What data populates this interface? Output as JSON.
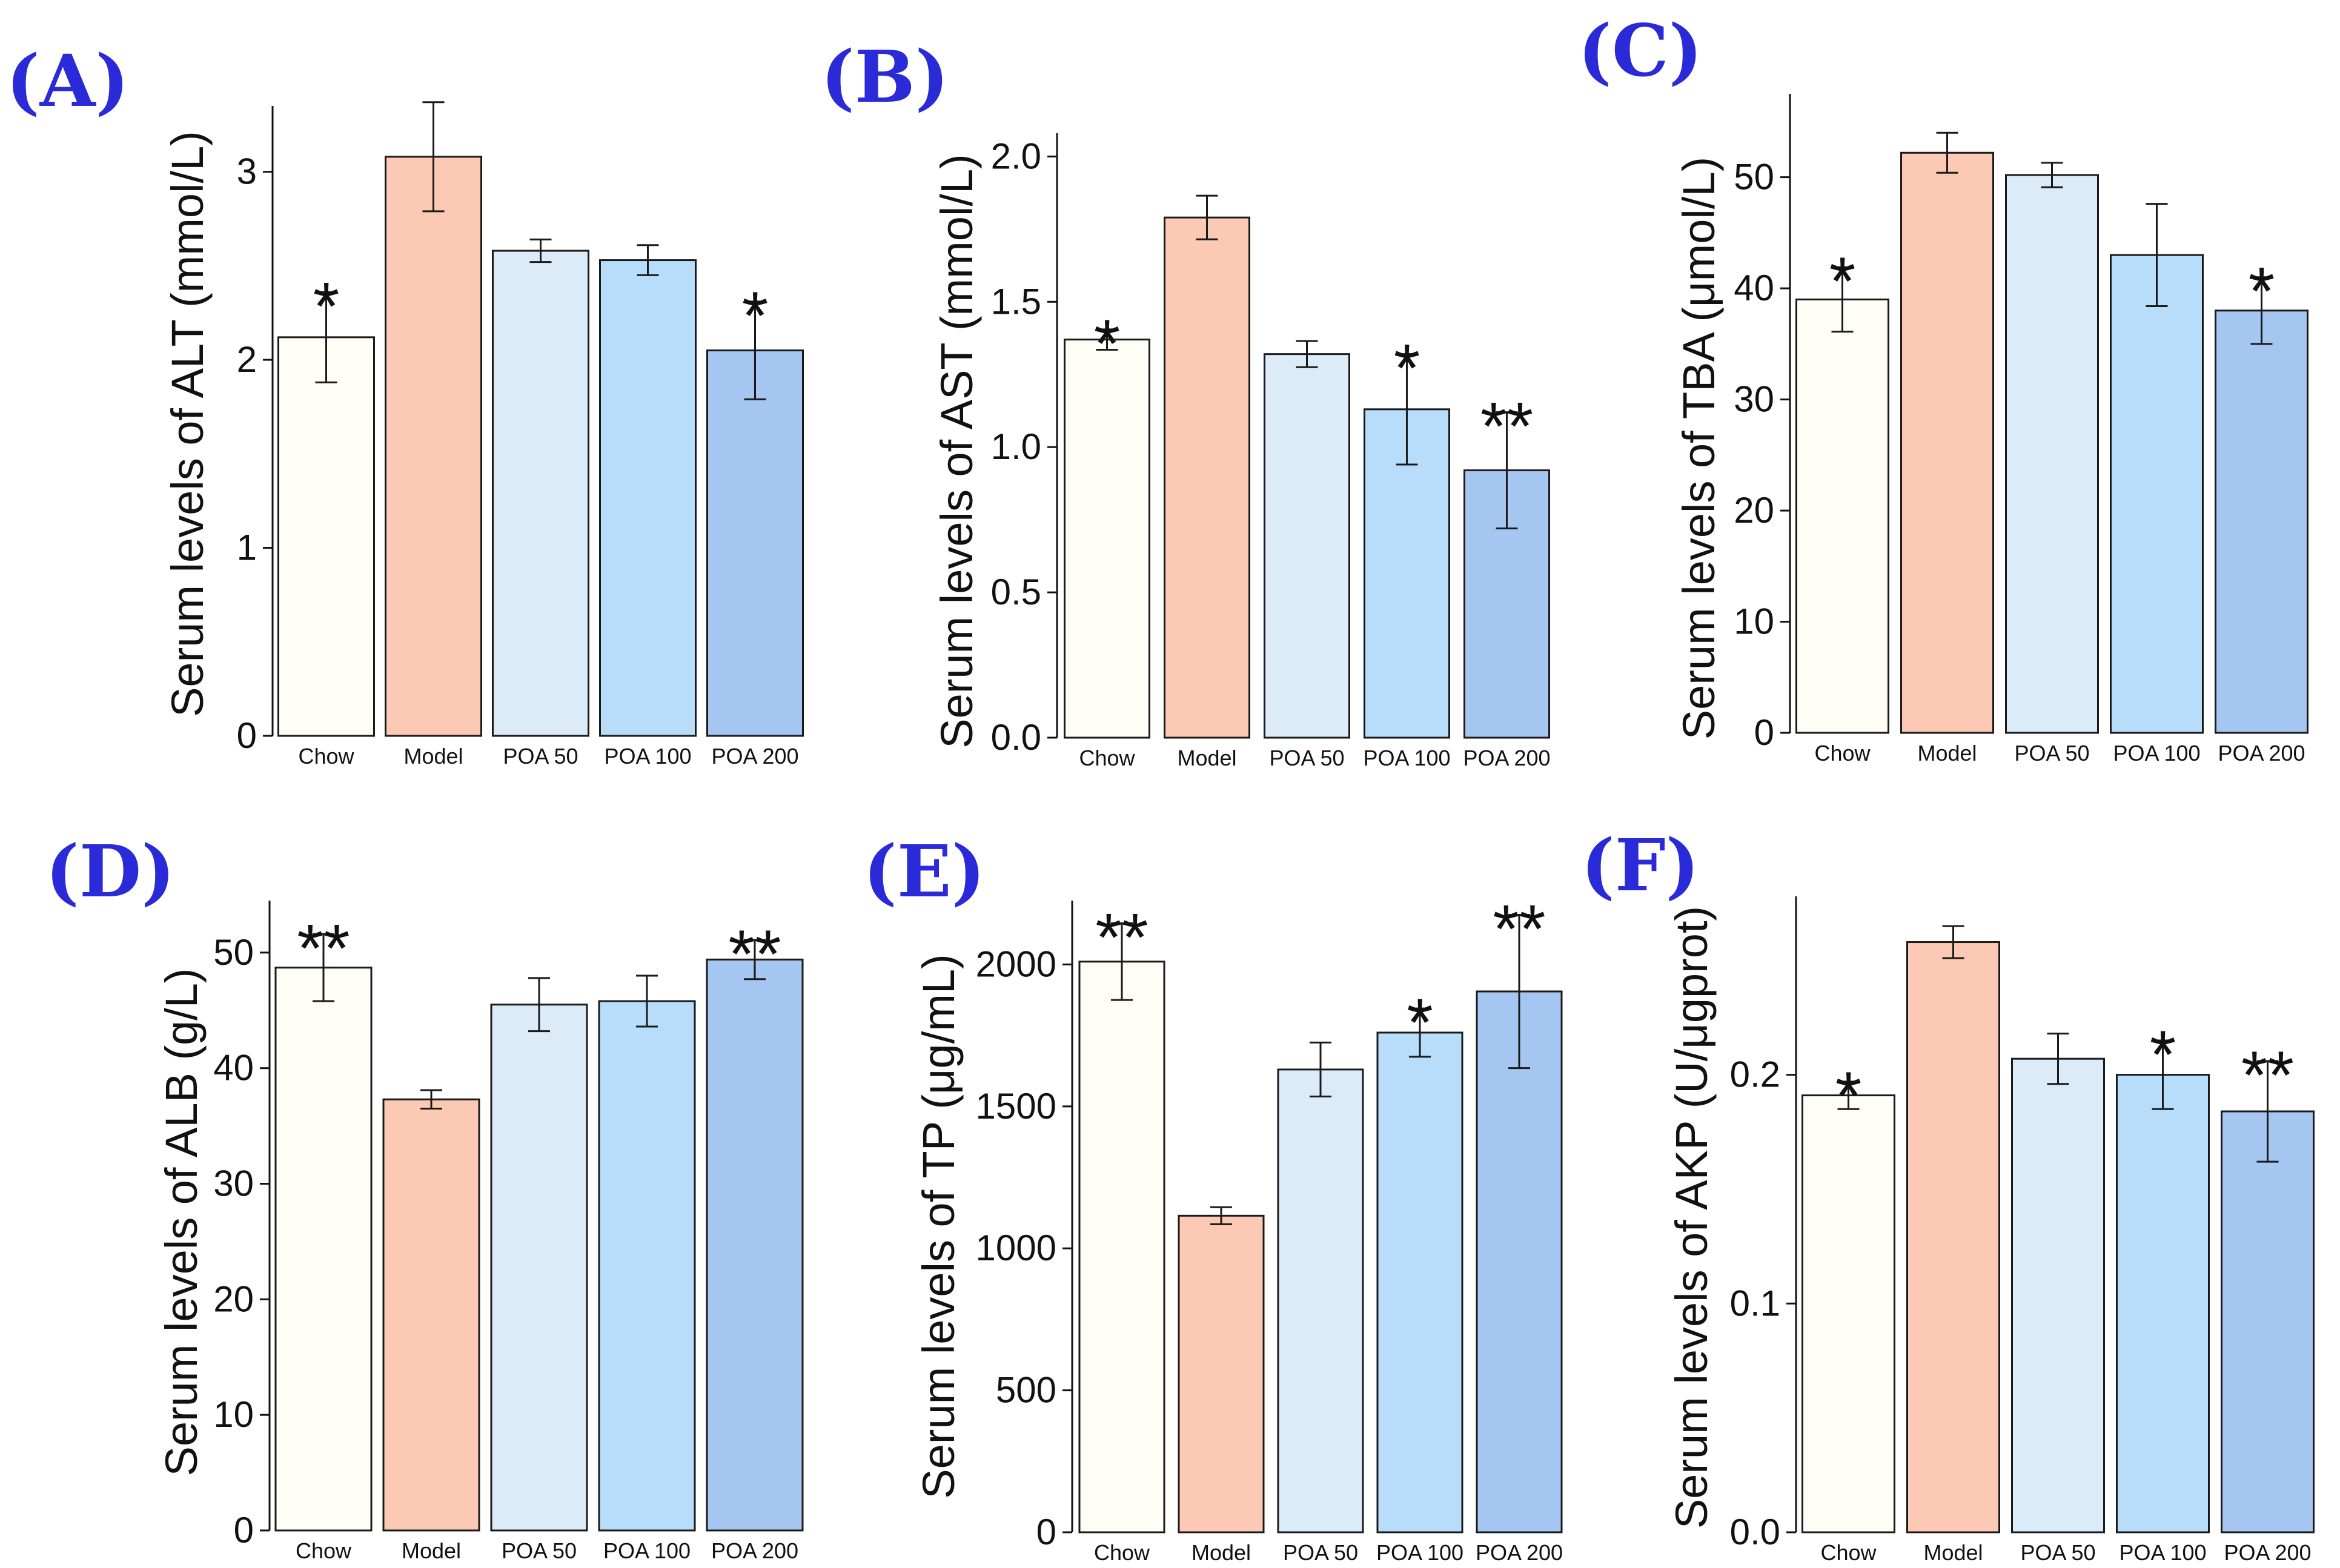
{
  "chart_data": [
    {
      "type": "bar",
      "panel": "(A)",
      "ylabel": "Serum levels of ALT (mmol/L)",
      "categories": [
        "Chow",
        "Model",
        "POA 50",
        "POA 100",
        "POA 200"
      ],
      "values": [
        2.12,
        3.08,
        2.58,
        2.53,
        2.05
      ],
      "errors": [
        0.24,
        0.29,
        0.06,
        0.08,
        0.26
      ],
      "significance": [
        "*",
        "",
        "",
        "",
        "*"
      ],
      "ylim": [
        0,
        3.35
      ],
      "yticks": [
        0,
        1,
        2,
        3
      ]
    },
    {
      "type": "bar",
      "panel": "(B)",
      "ylabel": "Serum levels of AST (mmol/L)",
      "categories": [
        "Chow",
        "Model",
        "POA 50",
        "POA 100",
        "POA 200"
      ],
      "values": [
        1.37,
        1.79,
        1.32,
        1.13,
        0.92
      ],
      "errors": [
        0.035,
        0.075,
        0.045,
        0.19,
        0.2
      ],
      "significance": [
        "*",
        "",
        "",
        "*",
        "**"
      ],
      "ylim": [
        0,
        2.08
      ],
      "yticks": [
        0.0,
        0.5,
        1.0,
        1.5,
        2.0
      ],
      "tick_decimals": 1
    },
    {
      "type": "bar",
      "panel": "(C)",
      "ylabel": "Serum levels of TBA (μmol/L)",
      "categories": [
        "Chow",
        "Model",
        "POA 50",
        "POA 100",
        "POA 200"
      ],
      "values": [
        39,
        52.2,
        50.2,
        43,
        38
      ],
      "errors": [
        2.9,
        1.8,
        1.1,
        4.6,
        3
      ],
      "significance": [
        "*",
        "",
        "",
        "",
        "*"
      ],
      "ylim": [
        0,
        57.5
      ],
      "yticks": [
        0,
        10,
        20,
        30,
        40,
        50
      ]
    },
    {
      "type": "bar",
      "panel": "(D)",
      "ylabel": "Serum levels of ALB (g/L)",
      "categories": [
        "Chow",
        "Model",
        "POA 50",
        "POA 100",
        "POA 200"
      ],
      "values": [
        48.7,
        37.3,
        45.5,
        45.8,
        49.4
      ],
      "errors": [
        2.9,
        0.8,
        2.3,
        2.2,
        1.7
      ],
      "significance": [
        "**",
        "",
        "",
        "",
        "**"
      ],
      "ylim": [
        0,
        54.5
      ],
      "yticks": [
        0,
        10,
        20,
        30,
        40,
        50
      ]
    },
    {
      "type": "bar",
      "panel": "(E)",
      "ylabel": "Serum levels of TP (μg/mL)",
      "categories": [
        "Chow",
        "Model",
        "POA 50",
        "POA 100",
        "POA 200"
      ],
      "values": [
        2010,
        1115,
        1630,
        1760,
        1905
      ],
      "errors": [
        135,
        30,
        95,
        85,
        270
      ],
      "significance": [
        "**",
        "",
        "",
        "*",
        "**"
      ],
      "ylim": [
        0,
        2225
      ],
      "yticks": [
        0,
        500,
        1000,
        1500,
        2000
      ]
    },
    {
      "type": "bar",
      "panel": "(F)",
      "ylabel": "Serum levels of AKP (U/μgprot)",
      "categories": [
        "Chow",
        "Model",
        "POA 50",
        "POA 100",
        "POA 200"
      ],
      "values": [
        0.191,
        0.258,
        0.207,
        0.2,
        0.184
      ],
      "errors": [
        0.006,
        0.007,
        0.011,
        0.015,
        0.022
      ],
      "significance": [
        "*",
        "",
        "",
        "*",
        "**"
      ],
      "ylim": [
        0,
        0.278
      ],
      "yticks": [
        0.0,
        0.1,
        0.2
      ],
      "tick_decimals": 1
    }
  ],
  "colors": {
    "bar_fills": [
      "#fefdf6",
      "#fbc9b4",
      "#dcebf8",
      "#b8ddfb",
      "#a5c6f0"
    ],
    "bar_edge": "#1a1a1a",
    "error_bar": "#1a1a1a",
    "panel_letter": "#2a2ad8"
  }
}
